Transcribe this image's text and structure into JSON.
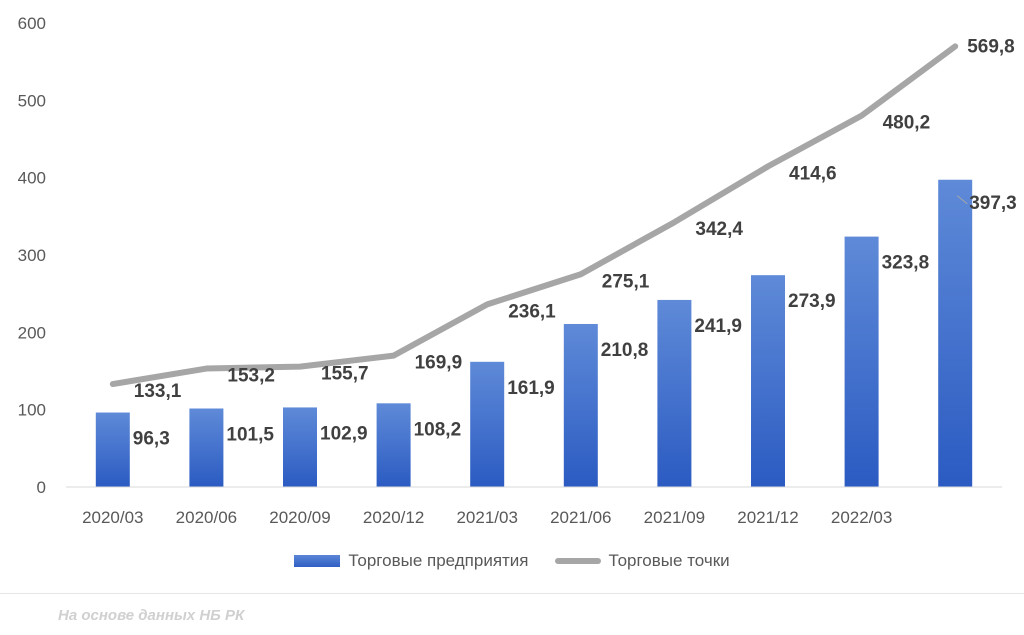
{
  "chart_data": {
    "type": "bar",
    "categories": [
      "2020/03",
      "2020/06",
      "2020/09",
      "2020/12",
      "2021/03",
      "2021/06",
      "2021/09",
      "2021/12",
      "2022/03",
      ""
    ],
    "series": [
      {
        "name": "Торговые предприятия",
        "type": "bar",
        "values": [
          96.3,
          101.5,
          102.9,
          108.2,
          161.9,
          210.8,
          241.9,
          273.9,
          323.8,
          397.3
        ],
        "labels": [
          "96,3",
          "101,5",
          "102,9",
          "108,2",
          "161,9",
          "210,8",
          "241,9",
          "273,9",
          "323,8",
          "397,3"
        ],
        "color": "#3f6fd0"
      },
      {
        "name": "Торговые точки",
        "type": "line",
        "values": [
          133.1,
          153.2,
          155.7,
          169.9,
          236.1,
          275.1,
          342.4,
          414.6,
          480.2,
          569.8
        ],
        "labels": [
          "133,1",
          "153,2",
          "155,7",
          "169,9",
          "236,1",
          "275,1",
          "342,4",
          "414,6",
          "480,2",
          "569,8"
        ],
        "color": "#a6a6a6"
      }
    ],
    "ylim": [
      0,
      600
    ],
    "yticks": [
      "0",
      "100",
      "200",
      "300",
      "400",
      "500",
      "600"
    ],
    "grid": false,
    "legend_position": "bottom"
  },
  "legend": {
    "bar_label": "Торговые предприятия",
    "line_label": "Торговые точки"
  },
  "source": "На основе данных НБ РК"
}
